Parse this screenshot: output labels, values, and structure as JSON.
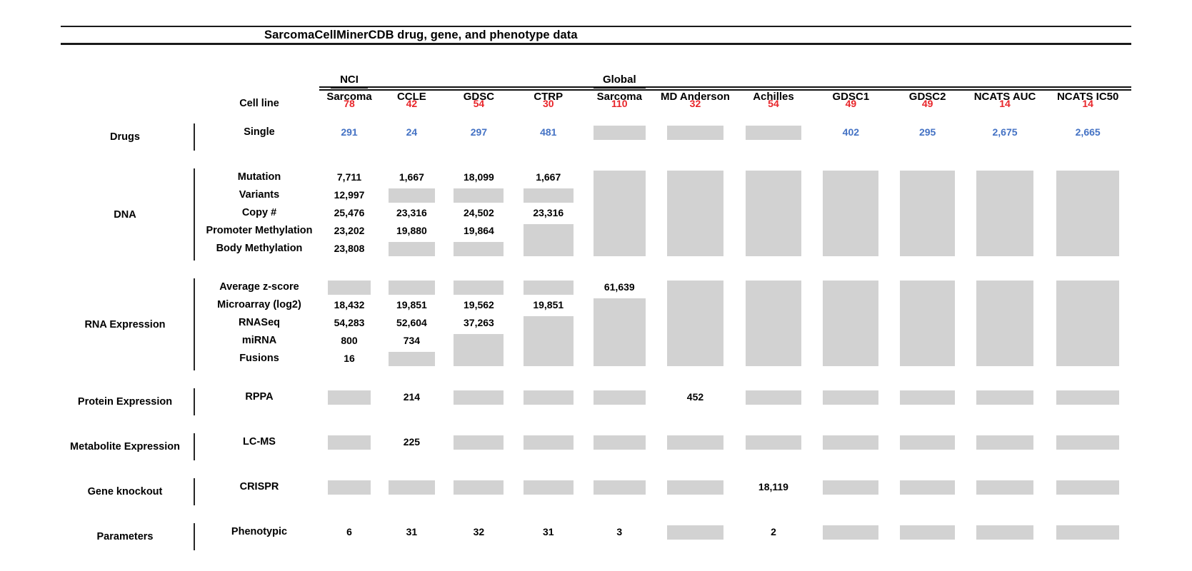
{
  "colors": {
    "red": "#e8252a",
    "blue": "#4472c4",
    "box": "#d2d2d2",
    "line": "#1a1a1a"
  },
  "chart_data": {
    "type": "table",
    "title": "SarcomaCellMinerCDB drug, gene, and phenotype data",
    "box_marker": "gray-box",
    "columns": [
      {
        "line1": "NCI",
        "line2": "Sarcoma",
        "two_line": true
      },
      {
        "line1": "CCLE"
      },
      {
        "line1": "GDSC"
      },
      {
        "line1": "CTRP"
      },
      {
        "line1": "Global",
        "line2": "Sarcoma",
        "two_line": true
      },
      {
        "line1": "MD Anderson"
      },
      {
        "line1": "Achilles"
      },
      {
        "line1": "GDSC1"
      },
      {
        "line1": "GDSC2"
      },
      {
        "line1": "NCATS AUC"
      },
      {
        "line1": "NCATS IC50"
      }
    ],
    "cell_line_row": {
      "label": "Cell line",
      "color": "red",
      "values": [
        "78",
        "42",
        "54",
        "30",
        "110",
        "32",
        "54",
        "49",
        "49",
        "14",
        "14"
      ]
    },
    "sections": [
      {
        "category": "Drugs",
        "value_color": "blue",
        "rows": [
          "Single"
        ],
        "cols": [
          [
            {
              "r": 0,
              "t": "291"
            }
          ],
          [
            {
              "r": 0,
              "t": "24"
            }
          ],
          [
            {
              "r": 0,
              "t": "297"
            }
          ],
          [
            {
              "r": 0,
              "t": "481"
            }
          ],
          [
            {
              "r": 0,
              "b": true,
              "s": 1
            }
          ],
          [
            {
              "r": 0,
              "b": true,
              "s": 1
            }
          ],
          [
            {
              "r": 0,
              "b": true,
              "s": 1
            }
          ],
          [
            {
              "r": 0,
              "t": "402"
            }
          ],
          [
            {
              "r": 0,
              "t": "295"
            }
          ],
          [
            {
              "r": 0,
              "t": "2,675"
            }
          ],
          [
            {
              "r": 0,
              "t": "2,665"
            }
          ]
        ]
      },
      {
        "category": "DNA",
        "value_color": "black",
        "rows": [
          "Mutation",
          "Variants",
          "Copy #",
          "Promoter Methylation",
          "Body Methylation"
        ],
        "cols": [
          [
            {
              "r": 0,
              "t": "7,711"
            },
            {
              "r": 1,
              "t": "12,997"
            },
            {
              "r": 2,
              "t": "25,476"
            },
            {
              "r": 3,
              "t": "23,202"
            },
            {
              "r": 4,
              "t": "23,808"
            }
          ],
          [
            {
              "r": 0,
              "t": "1,667"
            },
            {
              "r": 1,
              "b": true,
              "s": 1
            },
            {
              "r": 2,
              "t": "23,316"
            },
            {
              "r": 3,
              "t": "19,880"
            },
            {
              "r": 4,
              "b": true,
              "s": 1
            }
          ],
          [
            {
              "r": 0,
              "t": "18,099"
            },
            {
              "r": 1,
              "b": true,
              "s": 1
            },
            {
              "r": 2,
              "t": "24,502"
            },
            {
              "r": 3,
              "t": "19,864"
            },
            {
              "r": 4,
              "b": true,
              "s": 1
            }
          ],
          [
            {
              "r": 0,
              "t": "1,667"
            },
            {
              "r": 1,
              "b": true,
              "s": 1
            },
            {
              "r": 2,
              "t": "23,316"
            },
            {
              "r": 3,
              "b": true,
              "s": 2
            }
          ],
          [
            {
              "r": 0,
              "b": true,
              "s": 5
            }
          ],
          [
            {
              "r": 0,
              "b": true,
              "s": 5
            }
          ],
          [
            {
              "r": 0,
              "b": true,
              "s": 5
            }
          ],
          [
            {
              "r": 0,
              "b": true,
              "s": 5
            }
          ],
          [
            {
              "r": 0,
              "b": true,
              "s": 5
            }
          ],
          [
            {
              "r": 0,
              "b": true,
              "s": 5
            }
          ],
          [
            {
              "r": 0,
              "b": true,
              "s": 5
            }
          ]
        ]
      },
      {
        "category": "RNA Expression",
        "value_color": "black",
        "rows": [
          "Average z-score",
          "Microarray (log2)",
          "RNASeq",
          "miRNA",
          "Fusions"
        ],
        "cols": [
          [
            {
              "r": 0,
              "b": true,
              "s": 1
            },
            {
              "r": 1,
              "t": "18,432"
            },
            {
              "r": 2,
              "t": "54,283"
            },
            {
              "r": 3,
              "t": "800"
            },
            {
              "r": 4,
              "t": "16"
            }
          ],
          [
            {
              "r": 0,
              "b": true,
              "s": 1
            },
            {
              "r": 1,
              "t": "19,851"
            },
            {
              "r": 2,
              "t": "52,604"
            },
            {
              "r": 3,
              "t": "734"
            },
            {
              "r": 4,
              "b": true,
              "s": 1
            }
          ],
          [
            {
              "r": 0,
              "b": true,
              "s": 1
            },
            {
              "r": 1,
              "t": "19,562"
            },
            {
              "r": 2,
              "t": "37,263"
            },
            {
              "r": 3,
              "b": true,
              "s": 2
            }
          ],
          [
            {
              "r": 0,
              "b": true,
              "s": 1
            },
            {
              "r": 1,
              "t": "19,851"
            },
            {
              "r": 2,
              "b": true,
              "s": 3
            }
          ],
          [
            {
              "r": 0,
              "t": "61,639"
            },
            {
              "r": 1,
              "b": true,
              "s": 4
            }
          ],
          [
            {
              "r": 0,
              "b": true,
              "s": 5
            }
          ],
          [
            {
              "r": 0,
              "b": true,
              "s": 5
            }
          ],
          [
            {
              "r": 0,
              "b": true,
              "s": 5
            }
          ],
          [
            {
              "r": 0,
              "b": true,
              "s": 5
            }
          ],
          [
            {
              "r": 0,
              "b": true,
              "s": 5
            }
          ],
          [
            {
              "r": 0,
              "b": true,
              "s": 5
            }
          ]
        ]
      },
      {
        "category": "Protein Expression",
        "value_color": "black",
        "rows": [
          "RPPA"
        ],
        "cols": [
          [
            {
              "r": 0,
              "b": true,
              "s": 1
            }
          ],
          [
            {
              "r": 0,
              "t": "214"
            }
          ],
          [
            {
              "r": 0,
              "b": true,
              "s": 1
            }
          ],
          [
            {
              "r": 0,
              "b": true,
              "s": 1
            }
          ],
          [
            {
              "r": 0,
              "b": true,
              "s": 1
            }
          ],
          [
            {
              "r": 0,
              "t": "452"
            }
          ],
          [
            {
              "r": 0,
              "b": true,
              "s": 1
            }
          ],
          [
            {
              "r": 0,
              "b": true,
              "s": 1
            }
          ],
          [
            {
              "r": 0,
              "b": true,
              "s": 1
            }
          ],
          [
            {
              "r": 0,
              "b": true,
              "s": 1
            }
          ],
          [
            {
              "r": 0,
              "b": true,
              "s": 1
            }
          ]
        ]
      },
      {
        "category": "Metabolite Expression",
        "value_color": "black",
        "rows": [
          "LC-MS"
        ],
        "cols": [
          [
            {
              "r": 0,
              "b": true,
              "s": 1
            }
          ],
          [
            {
              "r": 0,
              "t": "225"
            }
          ],
          [
            {
              "r": 0,
              "b": true,
              "s": 1
            }
          ],
          [
            {
              "r": 0,
              "b": true,
              "s": 1
            }
          ],
          [
            {
              "r": 0,
              "b": true,
              "s": 1
            }
          ],
          [
            {
              "r": 0,
              "b": true,
              "s": 1
            }
          ],
          [
            {
              "r": 0,
              "b": true,
              "s": 1
            }
          ],
          [
            {
              "r": 0,
              "b": true,
              "s": 1
            }
          ],
          [
            {
              "r": 0,
              "b": true,
              "s": 1
            }
          ],
          [
            {
              "r": 0,
              "b": true,
              "s": 1
            }
          ],
          [
            {
              "r": 0,
              "b": true,
              "s": 1
            }
          ]
        ]
      },
      {
        "category": "Gene knockout",
        "value_color": "black",
        "rows": [
          "CRISPR"
        ],
        "cols": [
          [
            {
              "r": 0,
              "b": true,
              "s": 1
            }
          ],
          [
            {
              "r": 0,
              "b": true,
              "s": 1
            }
          ],
          [
            {
              "r": 0,
              "b": true,
              "s": 1
            }
          ],
          [
            {
              "r": 0,
              "b": true,
              "s": 1
            }
          ],
          [
            {
              "r": 0,
              "b": true,
              "s": 1
            }
          ],
          [
            {
              "r": 0,
              "b": true,
              "s": 1
            }
          ],
          [
            {
              "r": 0,
              "t": "18,119"
            }
          ],
          [
            {
              "r": 0,
              "b": true,
              "s": 1
            }
          ],
          [
            {
              "r": 0,
              "b": true,
              "s": 1
            }
          ],
          [
            {
              "r": 0,
              "b": true,
              "s": 1
            }
          ],
          [
            {
              "r": 0,
              "b": true,
              "s": 1
            }
          ]
        ]
      },
      {
        "category": "Parameters",
        "value_color": "black",
        "rows": [
          "Phenotypic"
        ],
        "cols": [
          [
            {
              "r": 0,
              "t": "6"
            }
          ],
          [
            {
              "r": 0,
              "t": "31"
            }
          ],
          [
            {
              "r": 0,
              "t": "32"
            }
          ],
          [
            {
              "r": 0,
              "t": "31"
            }
          ],
          [
            {
              "r": 0,
              "t": "3"
            }
          ],
          [
            {
              "r": 0,
              "b": true,
              "s": 1
            }
          ],
          [
            {
              "r": 0,
              "t": "2"
            }
          ],
          [
            {
              "r": 0,
              "b": true,
              "s": 1
            }
          ],
          [
            {
              "r": 0,
              "b": true,
              "s": 1
            }
          ],
          [
            {
              "r": 0,
              "b": true,
              "s": 1
            }
          ],
          [
            {
              "r": 0,
              "b": true,
              "s": 1
            }
          ]
        ]
      }
    ]
  }
}
